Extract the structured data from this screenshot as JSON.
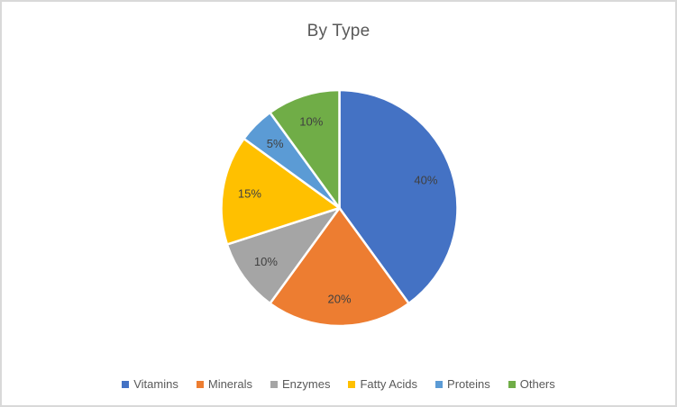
{
  "chart": {
    "title": "By Type",
    "title_color": "#595959",
    "data_label_color": "#404040",
    "legend_text_color": "#595959",
    "background_color": "#ffffff",
    "frame_border_color": "#d9d9d9",
    "slice_separator_color": "#ffffff"
  },
  "chart_data": {
    "type": "pie",
    "title": "By Type",
    "categories": [
      "Vitamins",
      "Minerals",
      "Enzymes",
      "Fatty Acids",
      "Proteins",
      "Others"
    ],
    "values": [
      40,
      20,
      10,
      15,
      5,
      10
    ],
    "data_labels": [
      "40%",
      "20%",
      "10%",
      "15%",
      "5%",
      "10%"
    ],
    "colors": [
      "#4472C4",
      "#ED7D31",
      "#A5A5A5",
      "#FFC000",
      "#5B9BD5",
      "#70AD47"
    ],
    "start_angle_deg": 0,
    "direction": "clockwise",
    "legend_position": "bottom",
    "legend_entries": [
      "Vitamins",
      "Minerals",
      "Enzymes",
      "Fatty Acids",
      "Proteins",
      "Others"
    ]
  }
}
